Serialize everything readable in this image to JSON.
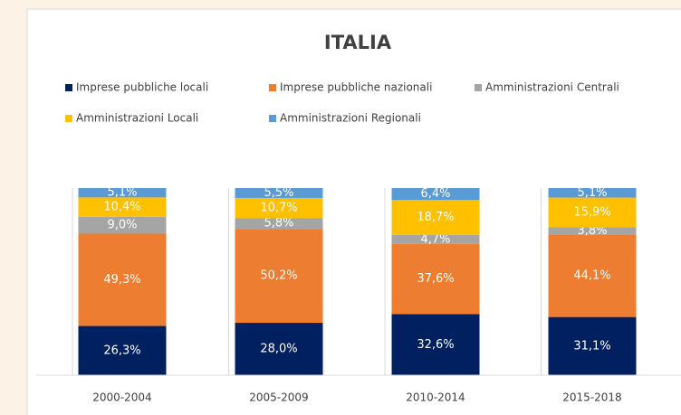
{
  "chart_data": {
    "type": "stacked_bar",
    "title": "ITALIA",
    "categories": [
      "2000-2004",
      "2005-2009",
      "2010-2014",
      "2015-2018"
    ],
    "series": [
      {
        "name": "Imprese pubbliche locali",
        "color": "#002060",
        "values": [
          26.3,
          28.0,
          32.6,
          31.1
        ],
        "value_labels": [
          "26,3%",
          "28,0%",
          "32,6%",
          "31,1%"
        ]
      },
      {
        "name": "Imprese pubbliche nazionali",
        "color": "#ed7d31",
        "values": [
          49.3,
          50.2,
          37.6,
          44.1
        ],
        "value_labels": [
          "49,3%",
          "50,2%",
          "37,6%",
          "44,1%"
        ]
      },
      {
        "name": "Amministrazioni Centrali",
        "color": "#a5a5a5",
        "values": [
          9.0,
          5.8,
          4.7,
          3.8
        ],
        "value_labels": [
          "9,0%",
          "5,8%",
          "4,7%",
          "3,8%"
        ]
      },
      {
        "name": "Amministrazioni Locali",
        "color": "#ffc000",
        "values": [
          10.4,
          10.7,
          18.7,
          15.9
        ],
        "value_labels": [
          "10,4%",
          "10,7%",
          "18,7%",
          "15,9%"
        ]
      },
      {
        "name": "Amministrazioni Regionali",
        "color": "#5b9bd5",
        "values": [
          5.1,
          5.5,
          6.4,
          5.1
        ],
        "value_labels": [
          "5,1%",
          "5,5%",
          "6,4%",
          "5,1%"
        ]
      }
    ],
    "ylim": [
      0,
      100
    ],
    "legend": "top"
  }
}
